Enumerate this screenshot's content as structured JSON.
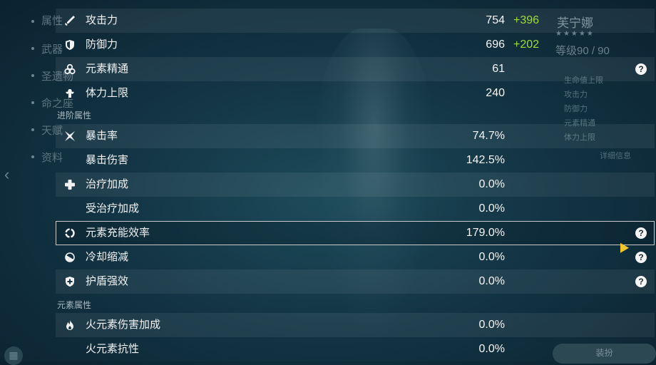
{
  "background": {
    "left_nav": [
      "属性",
      "武器",
      "圣遗物",
      "命之座",
      "天赋",
      "资料"
    ],
    "right_panel": {
      "name": "芙宁娜",
      "stars": "★★★★★",
      "level": "等级90 / 90",
      "sub_items": [
        "生命值上限",
        "攻击力",
        "防御力",
        "元素精通",
        "体力上限"
      ],
      "details_button": "详细信息",
      "bottom_button": "装扮"
    }
  },
  "stats": {
    "atk": {
      "label": "攻击力",
      "value": "754",
      "bonus": "+396"
    },
    "def": {
      "label": "防御力",
      "value": "696",
      "bonus": "+202"
    },
    "em": {
      "label": "元素精通",
      "value": "61"
    },
    "stamina": {
      "label": "体力上限",
      "value": "240"
    }
  },
  "advanced": {
    "section_title": "进阶属性",
    "crit_rate": {
      "label": "暴击率",
      "value": "74.7%"
    },
    "crit_dmg": {
      "label": "暴击伤害",
      "value": "142.5%"
    },
    "healing": {
      "label": "治疗加成",
      "value": "0.0%"
    },
    "incoming_healing": {
      "label": "受治疗加成",
      "value": "0.0%"
    },
    "energy_recharge": {
      "label": "元素充能效率",
      "value": "179.0%"
    },
    "cd_reduction": {
      "label": "冷却缩减",
      "value": "0.0%"
    },
    "shield_strength": {
      "label": "护盾强效",
      "value": "0.0%"
    }
  },
  "elemental": {
    "section_title": "元素属性",
    "pyro_dmg": {
      "label": "火元素伤害加成",
      "value": "0.0%"
    },
    "pyro_res": {
      "label": "火元素抗性",
      "value": "0.0%"
    }
  },
  "help_glyph": "?",
  "colors": {
    "bonus_green": "#9fdc3c",
    "panel_bg": "#133545",
    "cursor": "#f0c630"
  }
}
